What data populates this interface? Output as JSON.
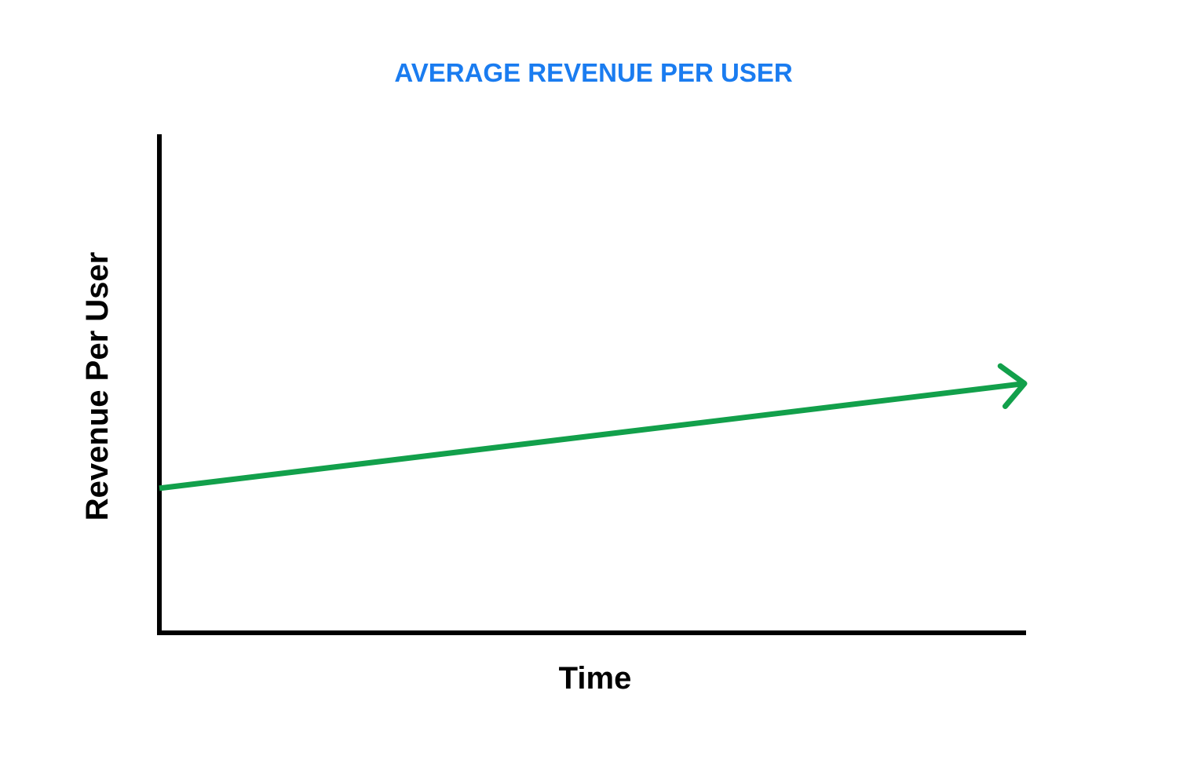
{
  "chart_data": {
    "type": "line",
    "title": "AVERAGE REVENUE PER USER",
    "xlabel": "Time",
    "ylabel": "Revenue Per User",
    "xlim": [
      0,
      1
    ],
    "ylim": [
      0,
      1
    ],
    "grid": false,
    "series": [
      {
        "x": [
          0,
          1
        ],
        "y": [
          0.29,
          0.5
        ],
        "end_marker": "arrow"
      }
    ]
  },
  "colors": {
    "title": "#1A7CF0",
    "line": "#12A04B",
    "axis": "#000000",
    "background": "#FFFFFF"
  }
}
